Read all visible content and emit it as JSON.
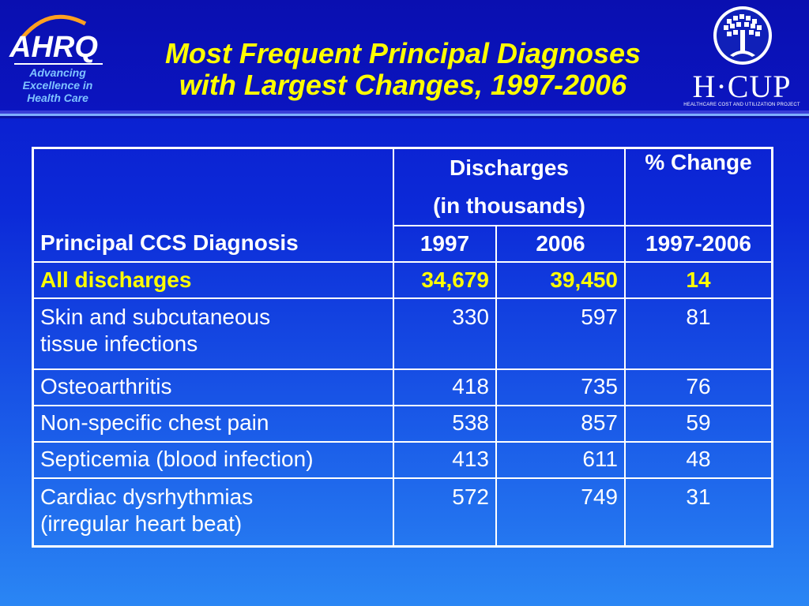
{
  "header": {
    "title_line1": "Most Frequent Principal Diagnoses",
    "title_line2": "with Largest Changes, 1997-2006",
    "ahrq_name": "AHRQ",
    "ahrq_tagline_1": "Advancing",
    "ahrq_tagline_2": "Excellence in",
    "ahrq_tagline_3": "Health Care",
    "hcup_name": "H·CUP",
    "hcup_subtitle": "HEALTHCARE COST AND UTILIZATION PROJECT"
  },
  "table": {
    "col_diagnosis": "Principal CCS Diagnosis",
    "col_discharges_1": "Discharges",
    "col_discharges_2": "(in thousands)",
    "col_pct": "% Change",
    "year_1997": "1997",
    "year_2006": "2006",
    "pct_range": "1997-2006",
    "all_row": {
      "label": "All discharges",
      "v1997": "34,679",
      "v2006": "39,450",
      "pct": "14"
    },
    "rows": [
      {
        "line1": "Skin and subcutaneous",
        "line2": "tissue infections",
        "v1997": "330",
        "v2006": "597",
        "pct": "81"
      },
      {
        "line1": "Osteoarthritis",
        "v1997": "418",
        "v2006": "735",
        "pct": "76"
      },
      {
        "line1": "Non-specific chest pain",
        "v1997": "538",
        "v2006": "857",
        "pct": "59"
      },
      {
        "line1": "Septicemia (blood infection)",
        "v1997": "413",
        "v2006": "611",
        "pct": "48"
      },
      {
        "line1": "Cardiac dysrhythmias",
        "line2": "(irregular heart beat)",
        "v1997": "572",
        "v2006": "749",
        "pct": "31"
      }
    ]
  },
  "colors": {
    "title": "#ffff00",
    "highlight_row": "#ffff00",
    "text": "#ffffff",
    "background": "#0c2ad8"
  }
}
